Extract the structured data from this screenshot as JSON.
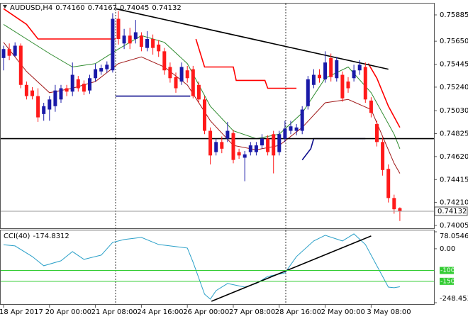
{
  "chart_data": [
    {
      "type": "candlestick",
      "symbol": "AUDUSD,H4",
      "ohlc_labels": [
        "0.74160",
        "0.74167",
        "0.74045",
        "0.74132"
      ],
      "categories": [
        "18 Apr 2017",
        null,
        null,
        null,
        null,
        null,
        null,
        null,
        "20 Apr 00:00",
        null,
        null,
        null,
        null,
        null,
        null,
        null,
        "21 Apr 08:00",
        null,
        null,
        null,
        null,
        null,
        null,
        null,
        "24 Apr 16:00",
        null,
        null,
        null,
        null,
        null,
        null,
        null,
        "26 Apr 00:00",
        null,
        null,
        null,
        null,
        null,
        null,
        null,
        "27 Apr 08:00",
        null,
        null,
        null,
        null,
        null,
        null,
        null,
        "28 Apr 16:00",
        null,
        null,
        null,
        null,
        null,
        null,
        null,
        "2 May 00:00",
        null,
        null,
        null,
        null,
        null,
        null,
        null,
        "3 May 08:00",
        null,
        null,
        null,
        null,
        null
      ],
      "open": [
        0.755,
        0.7558,
        0.7552,
        0.7561,
        0.7526,
        0.7521,
        0.7516,
        0.75,
        0.7504,
        0.7507,
        0.7513,
        0.7523,
        0.752,
        0.7531,
        0.7527,
        0.7521,
        0.7532,
        0.7538,
        0.754,
        0.7539,
        0.7585,
        0.7563,
        0.757,
        0.7567,
        0.757,
        0.7559,
        0.7567,
        0.7562,
        0.7556,
        0.7542,
        0.7533,
        0.7529,
        0.7539,
        0.754,
        0.7526,
        0.7513,
        0.7485,
        0.7466,
        0.7475,
        0.7478,
        0.7483,
        0.7466,
        0.7461,
        0.7466,
        0.7466,
        0.7472,
        0.7478,
        0.7482,
        0.7466,
        0.7478,
        0.7485,
        0.7485,
        0.7485,
        0.7507,
        0.7526,
        0.7535,
        0.7531,
        0.755,
        0.7532,
        0.7535,
        0.7529,
        0.7532,
        0.7539,
        0.7542,
        0.7512,
        0.7491,
        0.7475,
        0.7451,
        0.7425,
        0.7416
      ],
      "high": [
        0.7561,
        0.7563,
        0.7564,
        0.7563,
        0.7529,
        0.7524,
        0.7523,
        0.751,
        0.7516,
        0.7526,
        0.7526,
        0.7526,
        0.7546,
        0.7534,
        0.753,
        0.7535,
        0.7545,
        0.7544,
        0.7547,
        0.759,
        0.7592,
        0.7576,
        0.7577,
        0.7584,
        0.7573,
        0.7574,
        0.7571,
        0.7566,
        0.7559,
        0.7546,
        0.7537,
        0.7546,
        0.7543,
        0.7543,
        0.7529,
        0.7516,
        0.7488,
        0.7478,
        0.748,
        0.7493,
        0.7486,
        0.7469,
        0.7467,
        0.7475,
        0.7475,
        0.7482,
        0.7481,
        0.7485,
        0.7485,
        0.7494,
        0.7494,
        0.7491,
        0.7507,
        0.7534,
        0.754,
        0.754,
        0.7556,
        0.7554,
        0.7551,
        0.7538,
        0.7533,
        0.7544,
        0.7548,
        0.7546,
        0.7515,
        0.7494,
        0.7479,
        0.7455,
        0.7428,
        0.74167
      ],
      "low": [
        0.7539,
        0.7548,
        0.7551,
        0.7523,
        0.7513,
        0.7513,
        0.7493,
        0.7494,
        0.7494,
        0.7502,
        0.751,
        0.7516,
        0.7516,
        0.752,
        0.7517,
        0.7518,
        0.7529,
        0.7535,
        0.7537,
        0.7537,
        0.7562,
        0.7558,
        0.7558,
        0.7563,
        0.7556,
        0.7556,
        0.7553,
        0.7551,
        0.7535,
        0.7528,
        0.7519,
        0.7526,
        0.7528,
        0.7514,
        0.751,
        0.7482,
        0.7455,
        0.7463,
        0.7465,
        0.7475,
        0.7456,
        0.746,
        0.744,
        0.7463,
        0.7463,
        0.7469,
        0.7463,
        0.7447,
        0.7463,
        0.7475,
        0.7482,
        0.7481,
        0.7482,
        0.7504,
        0.7523,
        0.7528,
        0.7528,
        0.7529,
        0.7529,
        0.7511,
        0.7519,
        0.7529,
        0.7535,
        0.751,
        0.7497,
        0.7471,
        0.7445,
        0.7421,
        0.7411,
        0.74045
      ],
      "close": [
        0.7558,
        0.7552,
        0.7561,
        0.7526,
        0.7516,
        0.7516,
        0.7497,
        0.7507,
        0.7513,
        0.7521,
        0.7523,
        0.752,
        0.7535,
        0.7523,
        0.752,
        0.7532,
        0.754,
        0.7541,
        0.7544,
        0.7585,
        0.7567,
        0.757,
        0.7563,
        0.7573,
        0.756,
        0.7567,
        0.7559,
        0.7556,
        0.7539,
        0.7532,
        0.7523,
        0.7542,
        0.7532,
        0.7516,
        0.7513,
        0.7485,
        0.7463,
        0.7475,
        0.7469,
        0.7485,
        0.7459,
        0.7463,
        0.7464,
        0.7472,
        0.7472,
        0.7478,
        0.7466,
        0.7463,
        0.7482,
        0.7487,
        0.7489,
        0.7488,
        0.7504,
        0.7531,
        0.7535,
        0.7532,
        0.7546,
        0.7533,
        0.7548,
        0.7514,
        0.7523,
        0.7539,
        0.7544,
        0.7513,
        0.7501,
        0.7475,
        0.745,
        0.7425,
        0.7415,
        0.74132
      ],
      "up_color": "#1a1aa8",
      "down_color": "#ff1a1a",
      "ylim": [
        0.7398,
        0.7598
      ],
      "yticks": [
        0.75885,
        {
          "value": 0.7565,
          "label": "0.75650"
        },
        0.75445,
        {
          "value": 0.7524,
          "label": "0.75240"
        },
        {
          "value": 0.7503,
          "label": "0.75030"
        },
        0.74825,
        {
          "value": 0.7462,
          "label": "0.74620"
        },
        0.74415,
        {
          "value": 0.7421,
          "label": "0.74210"
        },
        0.74005
      ],
      "current_price": 0.74132,
      "current_price_label": "0.74132",
      "overlays": [
        {
          "color": "#2e8b2e",
          "x": [
            0,
            4,
            8,
            12,
            16,
            20,
            24,
            28,
            32,
            36,
            40,
            44,
            48,
            52,
            56,
            60,
            64,
            68,
            69
          ],
          "values": [
            0.758,
            0.7567,
            0.7554,
            0.7542,
            0.7545,
            0.7558,
            0.757,
            0.7564,
            0.7545,
            0.7507,
            0.7485,
            0.7478,
            0.7482,
            0.7501,
            0.7532,
            0.7542,
            0.7519,
            0.7482,
            0.7469
          ]
        },
        {
          "color": "#a01818",
          "x": [
            0,
            4,
            8,
            12,
            16,
            20,
            24,
            28,
            32,
            36,
            40,
            44,
            48,
            52,
            56,
            60,
            64,
            68,
            69
          ],
          "values": [
            0.7564,
            0.7538,
            0.7519,
            0.7523,
            0.7529,
            0.7545,
            0.7551,
            0.7542,
            0.7526,
            0.7494,
            0.7472,
            0.7468,
            0.7472,
            0.7488,
            0.751,
            0.7513,
            0.7504,
            0.7456,
            0.7447
          ]
        },
        {
          "color": "#ff0000",
          "x": [
            0,
            4,
            6,
            19.5
          ],
          "values": [
            0.7594,
            0.758,
            0.7567,
            0.7567
          ]
        },
        {
          "color": "#ff0000",
          "x": [
            33.5,
            35,
            40,
            40.5,
            45.5,
            46,
            51
          ],
          "values": [
            0.7567,
            0.7542,
            0.7542,
            0.753,
            0.753,
            0.7523,
            0.7523
          ]
        },
        {
          "color": "#ff0000",
          "x": [
            63.5,
            65,
            67,
            69
          ],
          "values": [
            0.7545,
            0.7532,
            0.7507,
            0.7488
          ]
        },
        {
          "color": "#0c0c8c",
          "x": [
            19.5,
            32.5
          ],
          "values": [
            0.7516,
            0.7516
          ]
        },
        {
          "color": "#0c0c8c",
          "x": [
            52,
            53.5,
            54,
            63
          ],
          "values": [
            0.7459,
            0.7469,
            0.7478,
            0.7478
          ]
        },
        {
          "color": "#000000",
          "x": [
            19.5,
            67
          ],
          "values": [
            0.7594,
            0.754
          ]
        },
        {
          "color": "#000000",
          "x": [
            -0.6,
            75
          ],
          "values": [
            0.7478,
            0.7478
          ]
        }
      ]
    },
    {
      "type": "line",
      "title": "CCI(40)",
      "color": "#2aa0c8",
      "x": [
        0,
        2,
        5,
        7,
        10,
        12,
        14,
        17,
        19,
        21,
        24,
        27,
        30,
        32,
        33,
        35,
        36,
        37,
        39,
        42,
        44,
        46,
        49,
        51,
        54,
        56,
        59,
        61,
        63,
        66,
        67,
        68,
        69
      ],
      "values": [
        18.3,
        13.1,
        -35.9,
        -78.4,
        -55.6,
        -13.1,
        -49.0,
        -29.4,
        29.4,
        42.5,
        52.3,
        19.6,
        9.8,
        3.3,
        -62.1,
        -209.2,
        -232.0,
        -192.8,
        -160.1,
        -176.5,
        -160.1,
        -127.5,
        -111.1,
        -35.9,
        35.9,
        62.1,
        35.9,
        68.6,
        19.6,
        -127.5,
        -176.5,
        -179.7,
        -174.8312
      ],
      "ylim": [
        -248.4533,
        78.0546
      ],
      "yticks": [
        78.0546,
        {
          "value": 0,
          "label": "0.00"
        },
        -248.4533
      ],
      "levels": [
        -100,
        -150
      ],
      "level_color": "#33cc33",
      "trendline": {
        "color": "#000000",
        "x": [
          36.2,
          64
        ],
        "values": [
          -241.8,
          58.8
        ]
      }
    }
  ]
}
